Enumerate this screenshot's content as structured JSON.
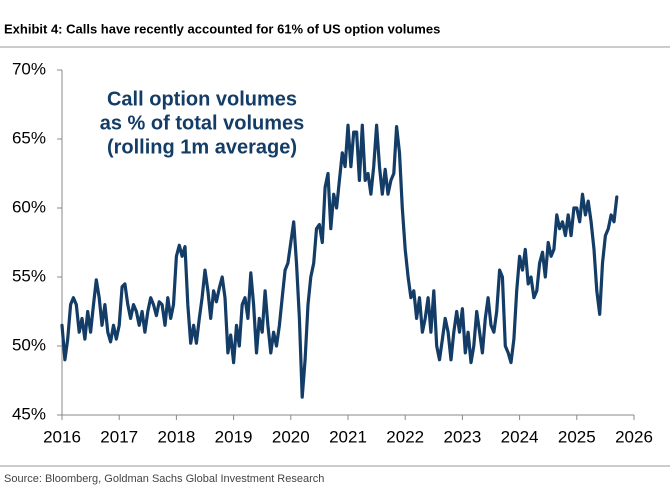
{
  "chart_data": {
    "type": "line",
    "title": "Exhibit 4: Calls have recently accounted for 61% of US option volumes",
    "annotation": [
      "Call option volumes",
      "as % of total volumes",
      "(rolling 1m average)"
    ],
    "source": "Source: Bloomberg, Goldman Sachs Global Investment Research",
    "color": "#133c66",
    "xlim": [
      2016,
      2026
    ],
    "xticks": [
      2016,
      2017,
      2018,
      2019,
      2020,
      2021,
      2022,
      2023,
      2024,
      2025,
      2026
    ],
    "ylim": [
      45,
      70
    ],
    "yticks": [
      {
        "value": 45,
        "label": "45%"
      },
      {
        "value": 50,
        "label": "50%"
      },
      {
        "value": 55,
        "label": "55%"
      },
      {
        "value": 60,
        "label": "60%"
      },
      {
        "value": 65,
        "label": "65%"
      },
      {
        "value": 70,
        "label": "70%"
      }
    ],
    "x": [
      2016.0,
      2016.05,
      2016.1,
      2016.15,
      2016.2,
      2016.25,
      2016.3,
      2016.35,
      2016.4,
      2016.45,
      2016.5,
      2016.55,
      2016.6,
      2016.65,
      2016.7,
      2016.75,
      2016.8,
      2016.85,
      2016.9,
      2016.95,
      2017.0,
      2017.05,
      2017.1,
      2017.15,
      2017.2,
      2017.25,
      2017.3,
      2017.35,
      2017.4,
      2017.45,
      2017.5,
      2017.55,
      2017.6,
      2017.65,
      2017.7,
      2017.75,
      2017.8,
      2017.85,
      2017.9,
      2017.95,
      2018.0,
      2018.05,
      2018.1,
      2018.15,
      2018.2,
      2018.25,
      2018.3,
      2018.35,
      2018.4,
      2018.45,
      2018.5,
      2018.55,
      2018.6,
      2018.65,
      2018.7,
      2018.75,
      2018.8,
      2018.85,
      2018.9,
      2018.95,
      2019.0,
      2019.05,
      2019.1,
      2019.15,
      2019.2,
      2019.25,
      2019.3,
      2019.35,
      2019.4,
      2019.45,
      2019.5,
      2019.55,
      2019.6,
      2019.65,
      2019.7,
      2019.75,
      2019.8,
      2019.85,
      2019.9,
      2019.95,
      2020.0,
      2020.05,
      2020.1,
      2020.15,
      2020.2,
      2020.25,
      2020.3,
      2020.35,
      2020.4,
      2020.45,
      2020.5,
      2020.55,
      2020.6,
      2020.65,
      2020.7,
      2020.75,
      2020.8,
      2020.85,
      2020.9,
      2020.95,
      2021.0,
      2021.05,
      2021.1,
      2021.15,
      2021.2,
      2021.25,
      2021.3,
      2021.35,
      2021.4,
      2021.45,
      2021.5,
      2021.55,
      2021.6,
      2021.65,
      2021.7,
      2021.75,
      2021.8,
      2021.85,
      2021.9,
      2021.95,
      2022.0,
      2022.05,
      2022.1,
      2022.15,
      2022.2,
      2022.25,
      2022.3,
      2022.35,
      2022.4,
      2022.45,
      2022.5,
      2022.55,
      2022.6,
      2022.65,
      2022.7,
      2022.75,
      2022.8,
      2022.85,
      2022.9,
      2022.95,
      2023.0,
      2023.05,
      2023.1,
      2023.15,
      2023.2,
      2023.25,
      2023.3,
      2023.35,
      2023.4,
      2023.45,
      2023.5,
      2023.55,
      2023.6,
      2023.65,
      2023.7,
      2023.75,
      2023.8,
      2023.85,
      2023.9,
      2023.95,
      2024.0,
      2024.05,
      2024.1,
      2024.15,
      2024.2,
      2024.25,
      2024.3,
      2024.35,
      2024.4,
      2024.45,
      2024.5,
      2024.55,
      2024.6,
      2024.65,
      2024.7,
      2024.75,
      2024.8,
      2024.85,
      2024.9,
      2024.95,
      2025.0,
      2025.05,
      2025.1,
      2025.15,
      2025.2,
      2025.25,
      2025.3,
      2025.35,
      2025.4,
      2025.45,
      2025.5,
      2025.55,
      2025.6,
      2025.65,
      2025.7
    ],
    "values": [
      51.5,
      49,
      50.5,
      53,
      53.5,
      53,
      51,
      52,
      50.5,
      52.5,
      51,
      53,
      54.8,
      53.5,
      51.5,
      53,
      51,
      50.3,
      51.5,
      50.5,
      51.5,
      54.3,
      54.5,
      53,
      52,
      53,
      52.5,
      51.5,
      52.5,
      51,
      52.5,
      53.5,
      53,
      52.2,
      53.2,
      53,
      51.5,
      53.5,
      52,
      53,
      56.5,
      57.3,
      56.5,
      57.2,
      53,
      50.2,
      51.5,
      50.2,
      52,
      53.5,
      55.5,
      54,
      52,
      54,
      53.2,
      54.2,
      55,
      53.5,
      49.5,
      50.8,
      48.8,
      51.5,
      50,
      53,
      53.5,
      52,
      55.3,
      53,
      49.5,
      52,
      51,
      54,
      51.5,
      49.5,
      51,
      50,
      51.5,
      53.5,
      55.5,
      56,
      57.5,
      59,
      56,
      52,
      46.3,
      49,
      53,
      55,
      56,
      58.5,
      58.8,
      57.5,
      61.5,
      62.5,
      58.5,
      61,
      60,
      62,
      64,
      63,
      66,
      63,
      65.5,
      65.5,
      62,
      66,
      62,
      62.5,
      61,
      63,
      66,
      63,
      61,
      62.8,
      61,
      62,
      62.5,
      65.9,
      64,
      60,
      57,
      55,
      53.5,
      54,
      52,
      53.5,
      51,
      52,
      53.5,
      51,
      54,
      50,
      49,
      50.5,
      52,
      51,
      49,
      51,
      52.5,
      51,
      52.7,
      49.5,
      51,
      48.8,
      50,
      52.5,
      51,
      49.5,
      52,
      53.5,
      51.5,
      51,
      52.5,
      55.5,
      55,
      50,
      49.5,
      48.8,
      50.5,
      54,
      56.5,
      55.5,
      57,
      54.5,
      55,
      53.5,
      54,
      56,
      56.8,
      55,
      57.5,
      56.5,
      57,
      59.5,
      58.5,
      59,
      58,
      59.5,
      58,
      60,
      60,
      59,
      61,
      59.5,
      60.5,
      59,
      57,
      54,
      52.3,
      56,
      58,
      58.5,
      59.5,
      59,
      60.8
    ]
  }
}
